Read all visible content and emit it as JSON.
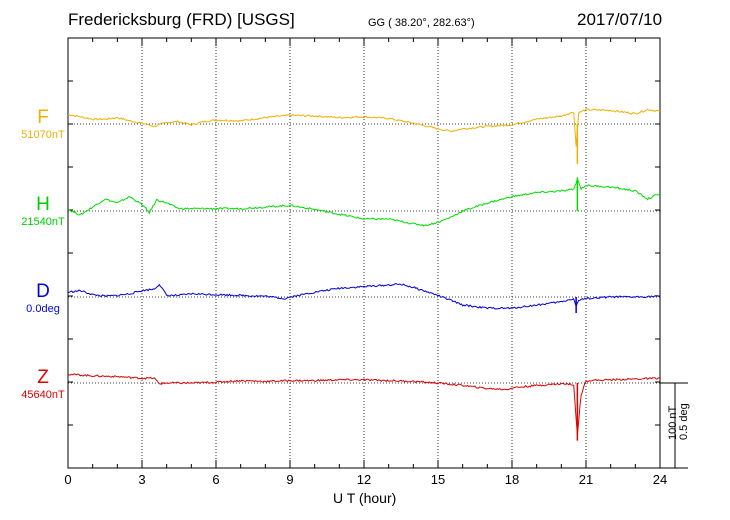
{
  "header": {
    "title": "Fredericksburg (FRD)  [USGS]",
    "coords": "GG ( 38.20°, 282.63°)",
    "date": "2017/07/10"
  },
  "chart_data": {
    "type": "line",
    "xlabel": "U T (hour)",
    "xlim": [
      0,
      24
    ],
    "xticks": [
      "0",
      "3",
      "6",
      "9",
      "12",
      "15",
      "18",
      "21",
      "24"
    ],
    "grid": true,
    "scale_bar": {
      "label1": "100 nT",
      "label2": "0.5 deg"
    },
    "series": [
      {
        "name": "F",
        "baseline": "51070nT",
        "color": "#f0b000",
        "offsets_nT": [
          [
            0,
            12
          ],
          [
            0.5,
            9
          ],
          [
            1,
            6
          ],
          [
            1.5,
            6
          ],
          [
            2,
            8
          ],
          [
            2.5,
            4
          ],
          [
            3,
            1
          ],
          [
            3.5,
            -3
          ],
          [
            4,
            2
          ],
          [
            4.5,
            3
          ],
          [
            5,
            -1
          ],
          [
            5.5,
            3
          ],
          [
            6,
            5
          ],
          [
            7,
            4
          ],
          [
            8,
            8
          ],
          [
            9,
            11
          ],
          [
            10,
            10
          ],
          [
            11,
            8
          ],
          [
            12,
            9
          ],
          [
            13,
            7
          ],
          [
            14,
            1
          ],
          [
            15,
            -6
          ],
          [
            15.5,
            -9
          ],
          [
            16,
            -6
          ],
          [
            17,
            -3
          ],
          [
            18,
            -1
          ],
          [
            19,
            6
          ],
          [
            20,
            10
          ],
          [
            20.5,
            15
          ],
          [
            20.6,
            -28
          ],
          [
            20.7,
            14
          ],
          [
            21,
            18
          ],
          [
            22,
            17
          ],
          [
            23,
            13
          ],
          [
            23.5,
            18
          ],
          [
            24,
            16
          ]
        ],
        "spikes": [
          [
            20.65,
            -50
          ]
        ]
      },
      {
        "name": "H",
        "baseline": "21540nT",
        "color": "#00dd00",
        "offsets_nT": [
          [
            0,
            2
          ],
          [
            0.5,
            -5
          ],
          [
            1,
            5
          ],
          [
            1.5,
            15
          ],
          [
            2,
            10
          ],
          [
            2.5,
            18
          ],
          [
            3,
            8
          ],
          [
            3.3,
            -2
          ],
          [
            3.6,
            14
          ],
          [
            4,
            10
          ],
          [
            4.5,
            3
          ],
          [
            5,
            3
          ],
          [
            6,
            3
          ],
          [
            7,
            3
          ],
          [
            8,
            5
          ],
          [
            9,
            7
          ],
          [
            10,
            2
          ],
          [
            11,
            -4
          ],
          [
            12,
            -10
          ],
          [
            13,
            -10
          ],
          [
            14,
            -16
          ],
          [
            14.5,
            -18
          ],
          [
            15,
            -14
          ],
          [
            15.5,
            -8
          ],
          [
            16,
            0
          ],
          [
            17,
            10
          ],
          [
            18,
            18
          ],
          [
            19,
            23
          ],
          [
            20,
            25
          ],
          [
            20.5,
            27
          ],
          [
            20.65,
            40
          ],
          [
            20.8,
            28
          ],
          [
            21,
            32
          ],
          [
            22,
            30
          ],
          [
            23,
            25
          ],
          [
            23.5,
            15
          ],
          [
            24,
            22
          ]
        ],
        "spikes": [
          [
            20.65,
            42
          ]
        ]
      },
      {
        "name": "D",
        "baseline": "0.0deg",
        "color": "#0000dd",
        "offsets_nT": [
          [
            0,
            6
          ],
          [
            0.5,
            8
          ],
          [
            1,
            3
          ],
          [
            1.5,
            1
          ],
          [
            2,
            2
          ],
          [
            2.5,
            4
          ],
          [
            3,
            8
          ],
          [
            3.5,
            10
          ],
          [
            3.7,
            16
          ],
          [
            4,
            2
          ],
          [
            4.5,
            2
          ],
          [
            5,
            4
          ],
          [
            6,
            3
          ],
          [
            7,
            2
          ],
          [
            8,
            1
          ],
          [
            8.8,
            -2
          ],
          [
            9,
            0
          ],
          [
            10,
            6
          ],
          [
            11,
            11
          ],
          [
            12,
            13
          ],
          [
            13,
            15
          ],
          [
            13.5,
            16
          ],
          [
            14,
            12
          ],
          [
            15,
            2
          ],
          [
            15.5,
            -4
          ],
          [
            16,
            -10
          ],
          [
            17,
            -14
          ],
          [
            18,
            -14
          ],
          [
            19,
            -10
          ],
          [
            20,
            -6
          ],
          [
            20.5,
            -2
          ],
          [
            20.6,
            -12
          ],
          [
            20.7,
            -4
          ],
          [
            21,
            -2
          ],
          [
            22,
            0
          ],
          [
            23,
            0
          ],
          [
            24,
            1
          ]
        ],
        "spikes": [
          [
            20.6,
            -20
          ]
        ]
      },
      {
        "name": "Z",
        "baseline": "45640nT",
        "color": "#dd0000",
        "offsets_nT": [
          [
            0,
            11
          ],
          [
            1,
            9
          ],
          [
            2,
            8
          ],
          [
            3,
            6
          ],
          [
            3.5,
            6
          ],
          [
            3.7,
            -1
          ],
          [
            4,
            0
          ],
          [
            5,
            0
          ],
          [
            6,
            1
          ],
          [
            7,
            3
          ],
          [
            8,
            2
          ],
          [
            9,
            3
          ],
          [
            10,
            3
          ],
          [
            11,
            4
          ],
          [
            12,
            4
          ],
          [
            13,
            3
          ],
          [
            14,
            2
          ],
          [
            15,
            0
          ],
          [
            16,
            -3
          ],
          [
            17,
            -7
          ],
          [
            17.8,
            -8
          ],
          [
            18,
            -6
          ],
          [
            19,
            -3
          ],
          [
            20,
            -1
          ],
          [
            20.5,
            -2
          ],
          [
            20.65,
            -65
          ],
          [
            20.8,
            -15
          ],
          [
            21,
            3
          ],
          [
            22,
            4
          ],
          [
            23,
            5
          ],
          [
            24,
            6
          ]
        ],
        "spikes": [
          [
            20.65,
            -72
          ]
        ]
      }
    ]
  }
}
